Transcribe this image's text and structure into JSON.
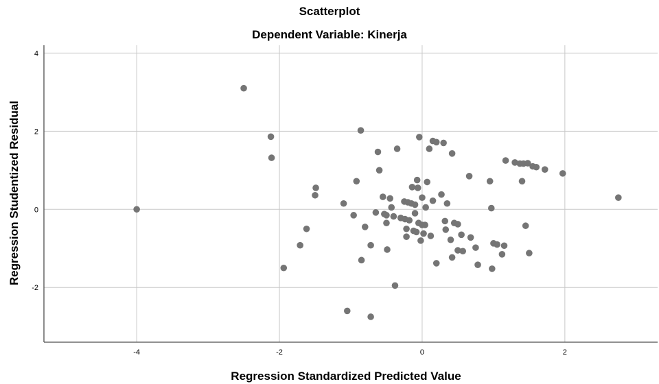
{
  "chart_data": {
    "type": "scatter",
    "title": "Scatterplot",
    "subtitle": "Dependent Variable: Kinerja",
    "xlabel": "Regression Standardized Predicted Value",
    "ylabel": "Regression Studentized Residual",
    "xlim": [
      -5.3,
      3.3
    ],
    "ylim": [
      -3.4,
      4.2
    ],
    "xticks": [
      -4,
      -2,
      0,
      2
    ],
    "yticks": [
      -2,
      0,
      2,
      4
    ],
    "grid": true,
    "marker_color": "#757575",
    "grid_color": "#c8c8c8",
    "points": [
      {
        "x": -4.0,
        "y": 0.0
      },
      {
        "x": -2.5,
        "y": 3.1
      },
      {
        "x": -2.12,
        "y": 1.86
      },
      {
        "x": -2.11,
        "y": 1.32
      },
      {
        "x": -1.94,
        "y": -1.5
      },
      {
        "x": -1.71,
        "y": -0.92
      },
      {
        "x": -1.62,
        "y": -0.5
      },
      {
        "x": -1.49,
        "y": 0.55
      },
      {
        "x": -1.5,
        "y": 0.36
      },
      {
        "x": -1.1,
        "y": 0.15
      },
      {
        "x": -1.05,
        "y": -2.6
      },
      {
        "x": -0.96,
        "y": -0.15
      },
      {
        "x": -0.92,
        "y": 0.72
      },
      {
        "x": -0.86,
        "y": 2.02
      },
      {
        "x": -0.85,
        "y": -1.3
      },
      {
        "x": -0.8,
        "y": -0.45
      },
      {
        "x": -0.72,
        "y": -2.75
      },
      {
        "x": -0.72,
        "y": -0.92
      },
      {
        "x": -0.65,
        "y": -0.08
      },
      {
        "x": -0.62,
        "y": 1.47
      },
      {
        "x": -0.6,
        "y": 1.0
      },
      {
        "x": -0.55,
        "y": 0.32
      },
      {
        "x": -0.53,
        "y": -0.12
      },
      {
        "x": -0.5,
        "y": -0.15
      },
      {
        "x": -0.5,
        "y": -0.35
      },
      {
        "x": -0.49,
        "y": -1.03
      },
      {
        "x": -0.45,
        "y": 0.28
      },
      {
        "x": -0.43,
        "y": 0.05
      },
      {
        "x": -0.4,
        "y": -0.18
      },
      {
        "x": -0.38,
        "y": -1.95
      },
      {
        "x": -0.35,
        "y": 1.55
      },
      {
        "x": -0.3,
        "y": -0.22
      },
      {
        "x": -0.25,
        "y": 0.2
      },
      {
        "x": -0.24,
        "y": -0.25
      },
      {
        "x": -0.22,
        "y": -0.5
      },
      {
        "x": -0.22,
        "y": -0.7
      },
      {
        "x": -0.2,
        "y": 0.18
      },
      {
        "x": -0.18,
        "y": -0.28
      },
      {
        "x": -0.15,
        "y": 0.15
      },
      {
        "x": -0.14,
        "y": 0.57
      },
      {
        "x": -0.12,
        "y": -0.55
      },
      {
        "x": -0.1,
        "y": 0.12
      },
      {
        "x": -0.1,
        "y": -0.1
      },
      {
        "x": -0.08,
        "y": -0.58
      },
      {
        "x": -0.07,
        "y": 0.75
      },
      {
        "x": -0.06,
        "y": 0.55
      },
      {
        "x": -0.05,
        "y": -0.35
      },
      {
        "x": -0.04,
        "y": 1.85
      },
      {
        "x": -0.02,
        "y": -0.8
      },
      {
        "x": 0.0,
        "y": 0.3
      },
      {
        "x": 0.0,
        "y": -0.4
      },
      {
        "x": 0.02,
        "y": -0.62
      },
      {
        "x": 0.04,
        "y": -0.4
      },
      {
        "x": 0.05,
        "y": 0.05
      },
      {
        "x": 0.07,
        "y": 0.7
      },
      {
        "x": 0.1,
        "y": 1.55
      },
      {
        "x": 0.12,
        "y": -0.68
      },
      {
        "x": 0.15,
        "y": 1.75
      },
      {
        "x": 0.15,
        "y": 0.22
      },
      {
        "x": 0.2,
        "y": 1.72
      },
      {
        "x": 0.2,
        "y": -1.38
      },
      {
        "x": 0.27,
        "y": 0.38
      },
      {
        "x": 0.3,
        "y": 1.7
      },
      {
        "x": 0.32,
        "y": -0.3
      },
      {
        "x": 0.33,
        "y": -0.52
      },
      {
        "x": 0.35,
        "y": 0.15
      },
      {
        "x": 0.4,
        "y": -0.78
      },
      {
        "x": 0.42,
        "y": 1.43
      },
      {
        "x": 0.42,
        "y": -1.23
      },
      {
        "x": 0.45,
        "y": -0.35
      },
      {
        "x": 0.5,
        "y": -0.38
      },
      {
        "x": 0.5,
        "y": -1.05
      },
      {
        "x": 0.55,
        "y": -0.65
      },
      {
        "x": 0.57,
        "y": -1.07
      },
      {
        "x": 0.66,
        "y": 0.85
      },
      {
        "x": 0.68,
        "y": -0.72
      },
      {
        "x": 0.75,
        "y": -0.98
      },
      {
        "x": 0.78,
        "y": -1.42
      },
      {
        "x": 0.95,
        "y": 0.72
      },
      {
        "x": 0.97,
        "y": 0.03
      },
      {
        "x": 0.98,
        "y": -1.52
      },
      {
        "x": 1.0,
        "y": -0.87
      },
      {
        "x": 1.05,
        "y": -0.9
      },
      {
        "x": 1.12,
        "y": -1.15
      },
      {
        "x": 1.15,
        "y": -0.93
      },
      {
        "x": 1.17,
        "y": 1.25
      },
      {
        "x": 1.3,
        "y": 1.2
      },
      {
        "x": 1.37,
        "y": 1.17
      },
      {
        "x": 1.4,
        "y": 0.72
      },
      {
        "x": 1.42,
        "y": 1.17
      },
      {
        "x": 1.45,
        "y": -0.42
      },
      {
        "x": 1.48,
        "y": 1.18
      },
      {
        "x": 1.5,
        "y": -1.12
      },
      {
        "x": 1.55,
        "y": 1.1
      },
      {
        "x": 1.6,
        "y": 1.08
      },
      {
        "x": 1.72,
        "y": 1.02
      },
      {
        "x": 1.97,
        "y": 0.92
      },
      {
        "x": 2.75,
        "y": 0.3
      }
    ]
  }
}
